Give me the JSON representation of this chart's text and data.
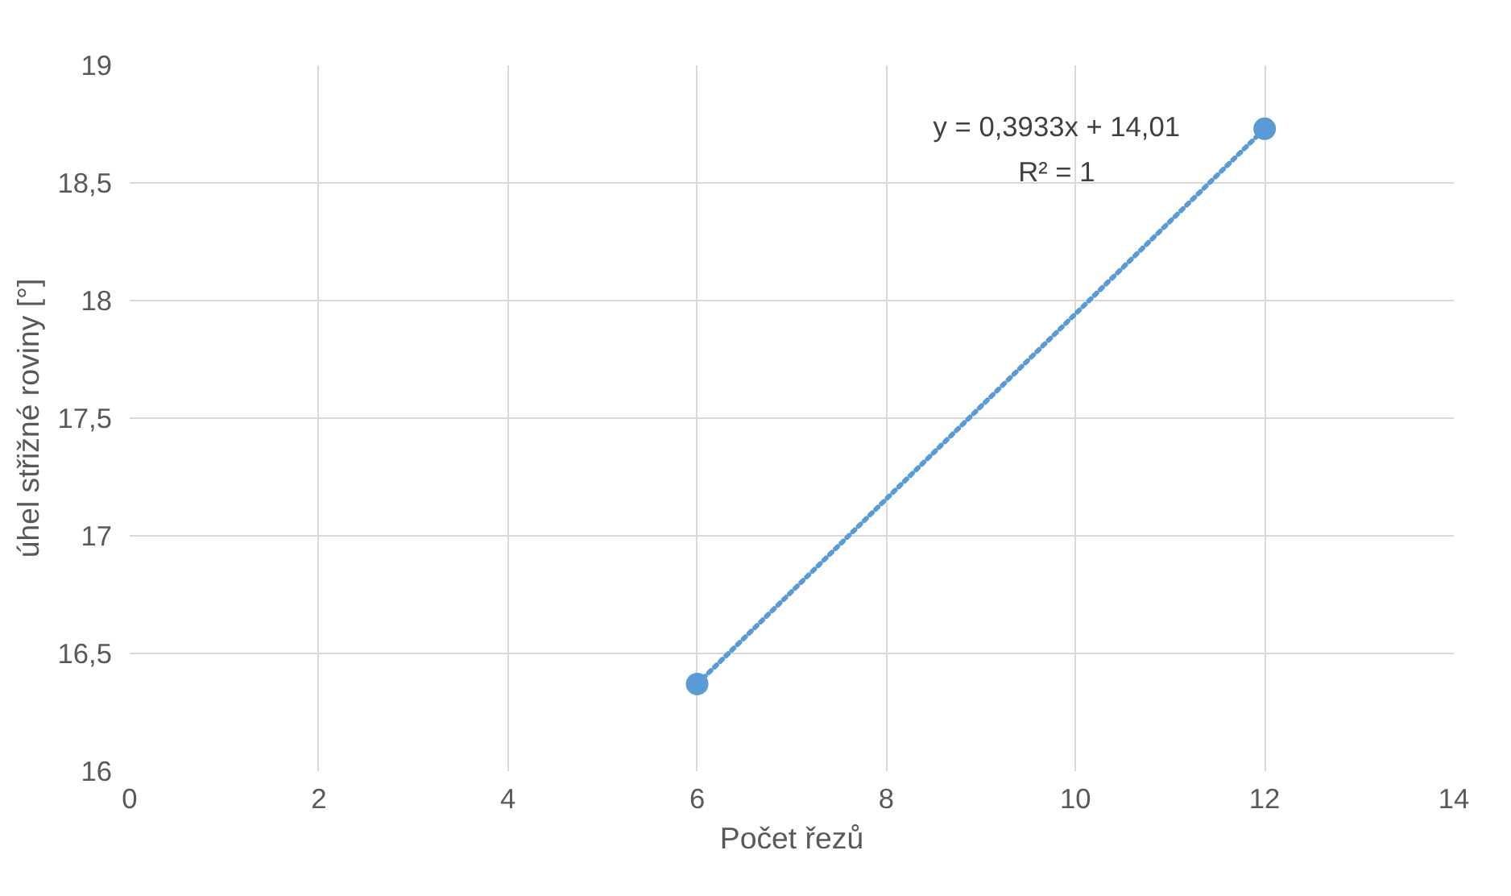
{
  "chart_data": {
    "type": "scatter",
    "xlabel": "Počet řezů",
    "ylabel": "úhel střižné roviny [°]",
    "xlim": [
      0,
      14
    ],
    "xticks": [
      0,
      2,
      4,
      6,
      8,
      10,
      12,
      14
    ],
    "ylim": [
      16,
      19
    ],
    "yticks": [
      16,
      {
        "value": 16.5,
        "label": "16,5"
      },
      17,
      {
        "value": 17.5,
        "label": "17,5"
      },
      18,
      {
        "value": 18.5,
        "label": "18,5"
      },
      19
    ],
    "grid": true,
    "x": [
      6,
      12
    ],
    "series": [
      {
        "values": [
          16.37,
          18.73
        ],
        "color": "#5b9bd5",
        "marker": "circle"
      },
      {
        "type": "line",
        "values": [
          16.37,
          18.73
        ],
        "color": "#5b9bd5",
        "marker": "none",
        "line_style": "dotted"
      }
    ],
    "annotations": [
      "y = 0,3933x + 14,01",
      "R² = 1"
    ]
  }
}
